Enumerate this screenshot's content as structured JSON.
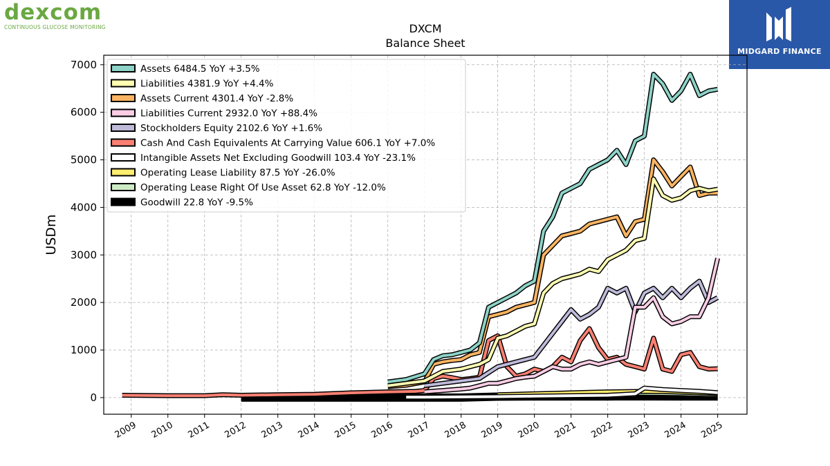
{
  "brand": {
    "name": "dexcom",
    "tagline": "CONTINUOUS GLUCOSE MONITORING"
  },
  "publisher": {
    "name": "MIDGARD FINANCE"
  },
  "chart_data": {
    "type": "line",
    "title": "DXCM",
    "subtitle": "Balance  Sheet",
    "xlabel": "",
    "ylabel": "USDm",
    "ylim": [
      -350,
      7200
    ],
    "xlim": [
      2008.25,
      2025.8
    ],
    "yticks": [
      0,
      1000,
      2000,
      3000,
      4000,
      5000,
      6000,
      7000
    ],
    "xticks": [
      "2009",
      "2010",
      "2011",
      "2012",
      "2013",
      "2014",
      "2015",
      "2016",
      "2017",
      "2018",
      "2019",
      "2020",
      "2021",
      "2022",
      "2023",
      "2024",
      "2025"
    ],
    "grid": true,
    "legend_position": "top-left",
    "series": [
      {
        "name": "Assets",
        "legend": "Assets  6484.5 YoY +3.5%",
        "color": "#8dd3c7",
        "x": [
          2016.0,
          2016.5,
          2017.0,
          2017.25,
          2017.5,
          2017.75,
          2018.0,
          2018.25,
          2018.5,
          2018.75,
          2019.0,
          2019.25,
          2019.5,
          2019.75,
          2020.0,
          2020.25,
          2020.5,
          2020.75,
          2021.0,
          2021.25,
          2021.5,
          2021.75,
          2022.0,
          2022.25,
          2022.5,
          2022.75,
          2023.0,
          2023.25,
          2023.5,
          2023.75,
          2024.0,
          2024.25,
          2024.5,
          2024.75,
          2025.0
        ],
        "y": [
          330,
          380,
          500,
          800,
          880,
          900,
          950,
          1000,
          1150,
          1900,
          2000,
          2100,
          2200,
          2350,
          2450,
          3500,
          3800,
          4300,
          4400,
          4500,
          4800,
          4900,
          5000,
          5200,
          4900,
          5400,
          5500,
          6800,
          6600,
          6250,
          6450,
          6800,
          6350,
          6450,
          6484.5
        ]
      },
      {
        "name": "Liabilities",
        "legend": "Liabilities  4381.9 YoY +4.4%",
        "color": "#ffffb3",
        "x": [
          2016.0,
          2017.0,
          2017.5,
          2018.0,
          2018.25,
          2018.5,
          2018.75,
          2019.0,
          2019.25,
          2019.5,
          2019.75,
          2020.0,
          2020.25,
          2020.5,
          2020.75,
          2021.0,
          2021.25,
          2021.5,
          2021.75,
          2022.0,
          2022.25,
          2022.5,
          2022.75,
          2023.0,
          2023.25,
          2023.5,
          2023.75,
          2024.0,
          2024.25,
          2024.5,
          2024.75,
          2025.0
        ],
        "y": [
          250,
          350,
          550,
          600,
          650,
          700,
          800,
          1250,
          1300,
          1400,
          1500,
          1550,
          2200,
          2400,
          2500,
          2550,
          2600,
          2700,
          2650,
          2900,
          3000,
          3100,
          3300,
          3350,
          4600,
          4250,
          4150,
          4200,
          4350,
          4400,
          4350,
          4381.9
        ]
      },
      {
        "name": "Assets Current",
        "legend": "Assets Current  4301.4 YoY -2.8%",
        "color": "#fdb462",
        "x": [
          2016.0,
          2016.5,
          2017.0,
          2017.25,
          2017.5,
          2017.75,
          2018.0,
          2018.25,
          2018.5,
          2018.75,
          2019.0,
          2019.25,
          2019.5,
          2019.75,
          2020.0,
          2020.25,
          2020.5,
          2020.75,
          2021.0,
          2021.25,
          2021.5,
          2021.75,
          2022.0,
          2022.25,
          2022.5,
          2022.75,
          2023.0,
          2023.25,
          2023.5,
          2023.75,
          2024.0,
          2024.25,
          2024.5,
          2024.75,
          2025.0
        ],
        "y": [
          230,
          260,
          330,
          700,
          750,
          780,
          800,
          900,
          950,
          1700,
          1750,
          1800,
          1900,
          1950,
          2000,
          3000,
          3200,
          3400,
          3450,
          3500,
          3650,
          3700,
          3750,
          3800,
          3400,
          3700,
          3750,
          5000,
          4750,
          4450,
          4650,
          4850,
          4250,
          4300,
          4301.4
        ]
      },
      {
        "name": "Liabilities Current",
        "legend": "Liabilities Current  2932.0 YoY +88.4%",
        "color": "#fccde5",
        "x": [
          2017.0,
          2017.5,
          2018.0,
          2018.25,
          2018.5,
          2018.75,
          2019.0,
          2019.25,
          2019.5,
          2019.75,
          2020.0,
          2020.25,
          2020.5,
          2020.75,
          2021.0,
          2021.25,
          2021.5,
          2021.75,
          2022.0,
          2022.25,
          2022.5,
          2022.75,
          2023.0,
          2023.25,
          2023.5,
          2023.75,
          2024.0,
          2024.25,
          2024.5,
          2024.75,
          2025.0
        ],
        "y": [
          120,
          150,
          180,
          200,
          250,
          300,
          300,
          350,
          400,
          430,
          450,
          550,
          650,
          600,
          600,
          700,
          750,
          700,
          750,
          800,
          850,
          1900,
          1900,
          2100,
          1700,
          1550,
          1600,
          1700,
          1700,
          2100,
          2932
        ]
      },
      {
        "name": "Stockholders Equity",
        "legend": "Stockholders Equity  2102.6 YoY +1.6%",
        "color": "#bebada",
        "x": [
          2017.0,
          2017.5,
          2018.0,
          2018.5,
          2019.0,
          2019.25,
          2019.5,
          2019.75,
          2020.0,
          2020.25,
          2020.5,
          2020.75,
          2021.0,
          2021.25,
          2021.5,
          2021.75,
          2022.0,
          2022.25,
          2022.5,
          2022.75,
          2023.0,
          2023.25,
          2023.5,
          2023.75,
          2024.0,
          2024.25,
          2024.5,
          2024.75,
          2025.0
        ],
        "y": [
          250,
          300,
          350,
          400,
          650,
          700,
          750,
          800,
          850,
          1100,
          1350,
          1600,
          1850,
          1650,
          1750,
          1900,
          2300,
          2200,
          2300,
          1800,
          2200,
          2300,
          2100,
          2300,
          2100,
          2300,
          2450,
          2000,
          2102.6
        ]
      },
      {
        "name": "Cash And Cash Equivalents At Carrying Value",
        "legend": "Cash And Cash Equivalents At Carrying Value  606.1 YoY +7.0%",
        "color": "#fb8072",
        "x": [
          2008.75,
          2010.0,
          2011.0,
          2011.5,
          2012.0,
          2013.0,
          2014.0,
          2015.0,
          2016.0,
          2016.75,
          2017.0,
          2017.25,
          2017.5,
          2017.75,
          2018.0,
          2018.25,
          2018.5,
          2018.75,
          2019.0,
          2019.25,
          2019.5,
          2019.75,
          2020.0,
          2020.25,
          2020.5,
          2020.75,
          2021.0,
          2021.25,
          2021.5,
          2021.75,
          2022.0,
          2022.25,
          2022.5,
          2022.75,
          2023.0,
          2023.25,
          2023.5,
          2023.75,
          2024.0,
          2024.25,
          2024.5,
          2024.75,
          2025.0
        ],
        "y": [
          50,
          40,
          40,
          60,
          50,
          60,
          70,
          100,
          120,
          130,
          150,
          400,
          450,
          420,
          380,
          400,
          430,
          1200,
          1300,
          650,
          450,
          500,
          600,
          550,
          650,
          850,
          750,
          1200,
          1450,
          1050,
          800,
          850,
          700,
          650,
          600,
          1250,
          600,
          550,
          900,
          950,
          650,
          600,
          606.1
        ]
      },
      {
        "name": "Intangible Assets Net Excluding Goodwill",
        "legend": "Intangible Assets Net Excluding Goodwill  103.4 YoY -23.1%",
        "color": "#ffffff",
        "x": [
          2016.5,
          2017.0,
          2018.0,
          2019.0,
          2020.0,
          2021.0,
          2022.0,
          2022.75,
          2023.0,
          2023.5,
          2024.0,
          2024.5,
          2025.0
        ],
        "y": [
          10,
          10,
          15,
          20,
          30,
          40,
          50,
          80,
          200,
          170,
          150,
          130,
          103.4
        ]
      },
      {
        "name": "Operating Lease Liability",
        "legend": "Operating Lease Liability  87.5 YoY -26.0%",
        "color": "#ffed6f",
        "x": [
          2019.0,
          2019.5,
          2020.0,
          2020.5,
          2021.0,
          2021.5,
          2022.0,
          2022.5,
          2023.0,
          2023.5,
          2024.0,
          2024.5,
          2025.0
        ],
        "y": [
          60,
          70,
          80,
          90,
          100,
          110,
          120,
          125,
          130,
          125,
          115,
          100,
          87.5
        ]
      },
      {
        "name": "Operating Lease Right Of Use Asset",
        "legend": "Operating Lease Right Of Use Asset  62.8 YoY -12.0%",
        "color": "#ccebc5",
        "x": [
          2019.0,
          2019.5,
          2020.0,
          2020.5,
          2021.0,
          2021.5,
          2022.0,
          2022.5,
          2023.0,
          2023.5,
          2024.0,
          2024.5,
          2025.0
        ],
        "y": [
          50,
          60,
          70,
          80,
          90,
          100,
          100,
          95,
          90,
          85,
          80,
          70,
          62.8
        ]
      },
      {
        "name": "Goodwill",
        "legend": "Goodwill  22.8 YoY -9.5%",
        "color": "#000000",
        "x": [
          2012.0,
          2014.0,
          2016.0,
          2018.0,
          2019.0,
          2020.0,
          2021.0,
          2022.0,
          2023.0,
          2024.0,
          2025.0
        ],
        "y": [
          0,
          0,
          0,
          0,
          20,
          25,
          25,
          25,
          26,
          25,
          22.8
        ]
      }
    ]
  }
}
